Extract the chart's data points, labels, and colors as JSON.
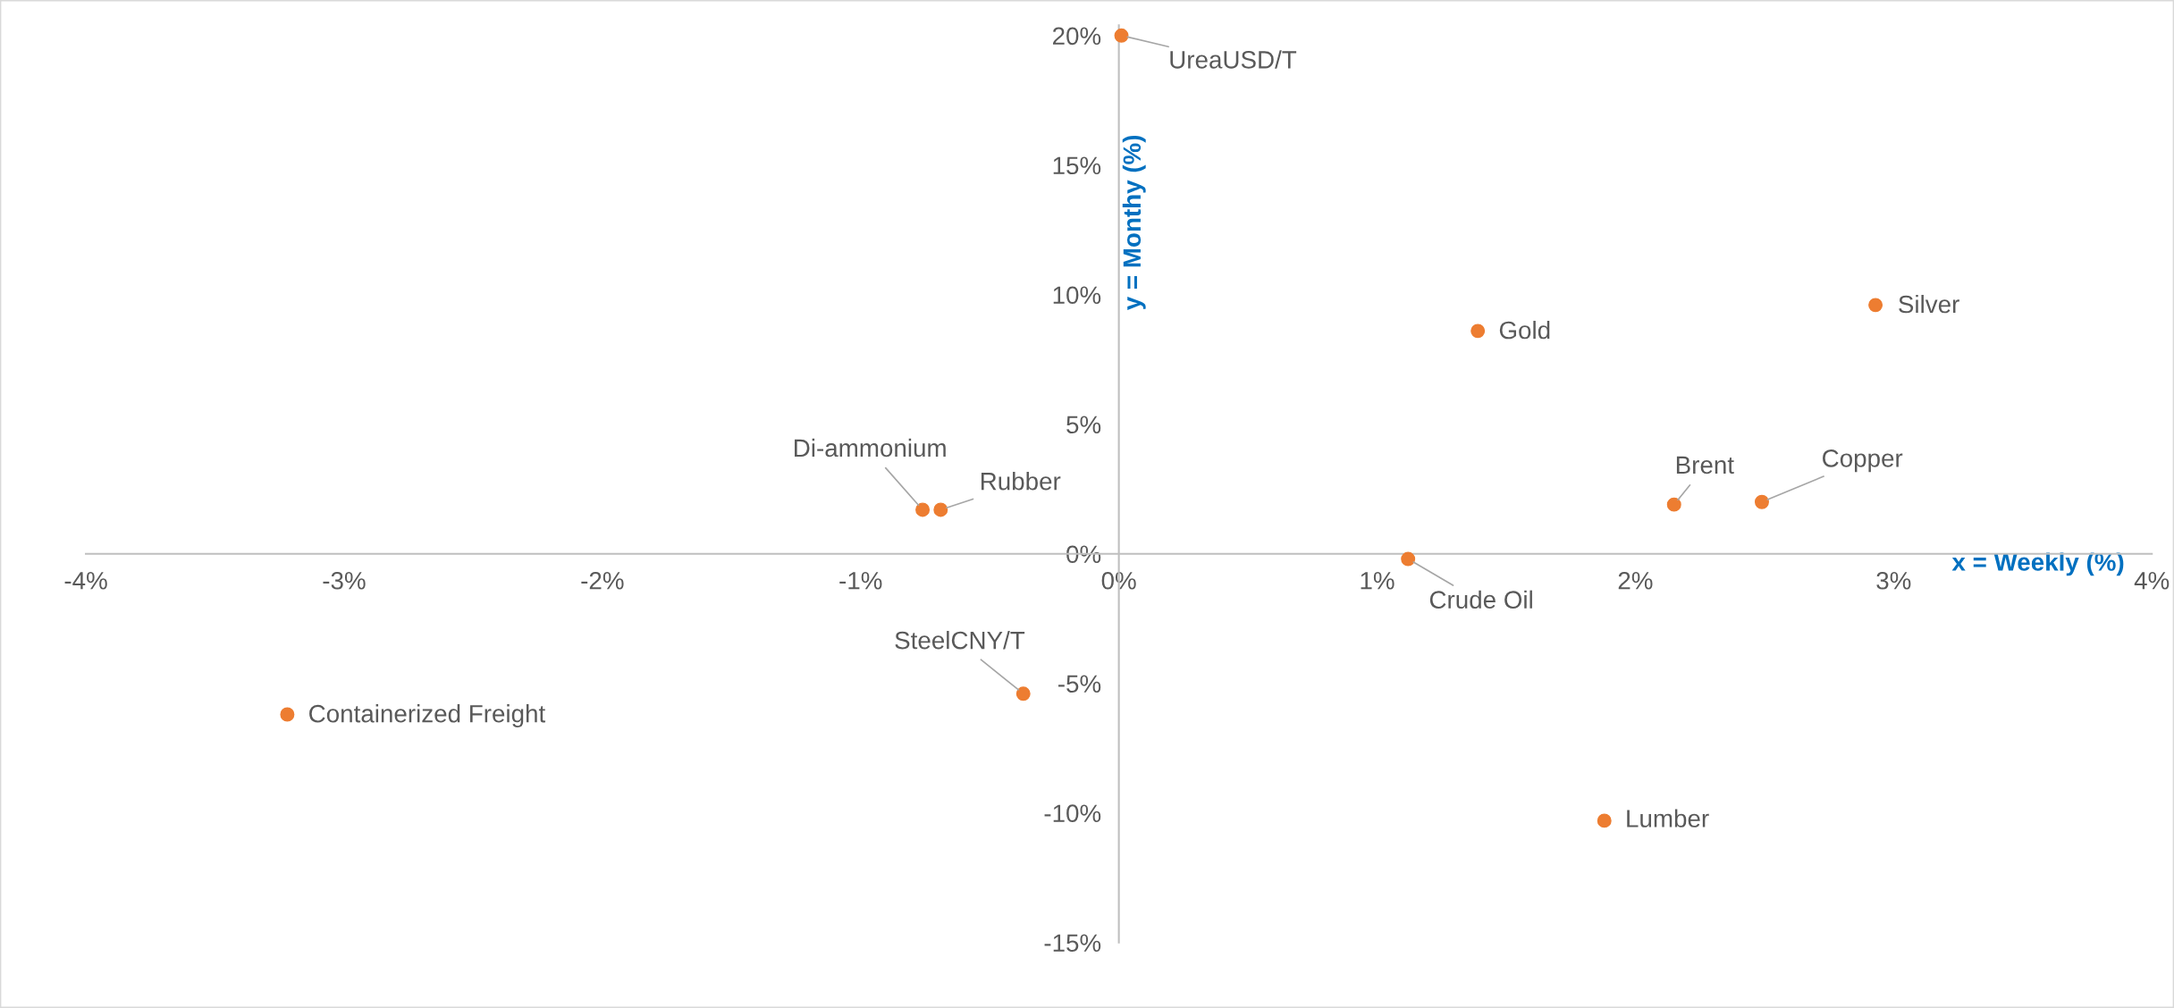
{
  "chart_data": {
    "type": "scatter",
    "xlabel": "x = Weekly (%)",
    "ylabel": "y = Monthy (%)",
    "x": [
      0.01,
      1.39,
      2.93,
      2.15,
      2.49,
      1.12,
      -0.76,
      -0.69,
      -0.37,
      -3.22,
      1.88
    ],
    "series": [
      {
        "color": "#ed7d31",
        "values": [
          20.0,
          8.6,
          9.6,
          1.9,
          2.0,
          -0.2,
          1.7,
          1.7,
          -5.4,
          -6.2,
          -10.3
        ]
      }
    ],
    "annotations": [
      {
        "text": "UreaUSD/T",
        "x": 0.01,
        "y": 20.0
      },
      {
        "text": "Gold",
        "x": 1.39,
        "y": 8.6
      },
      {
        "text": "Silver",
        "x": 2.93,
        "y": 9.6
      },
      {
        "text": "Brent",
        "x": 2.15,
        "y": 1.9
      },
      {
        "text": "Copper",
        "x": 2.49,
        "y": 2.0
      },
      {
        "text": "Crude Oil",
        "x": 1.12,
        "y": -0.2
      },
      {
        "text": "Di-ammonium",
        "x": -0.76,
        "y": 1.7
      },
      {
        "text": "Rubber",
        "x": -0.69,
        "y": 1.7
      },
      {
        "text": "SteelCNY/T",
        "x": -0.37,
        "y": -5.4
      },
      {
        "text": "Containerized Freight",
        "x": -3.22,
        "y": -6.2
      },
      {
        "text": "Lumber",
        "x": 1.88,
        "y": -10.3
      }
    ],
    "xlim": [
      -4,
      4
    ],
    "ylim": [
      -15,
      20.4
    ],
    "xticks": [
      {
        "value": -4,
        "label": "-4%"
      },
      {
        "value": -3,
        "label": "-3%"
      },
      {
        "value": -2,
        "label": "-2%"
      },
      {
        "value": -1,
        "label": "-1%"
      },
      {
        "value": 0,
        "label": "0%"
      },
      {
        "value": 1,
        "label": "1%"
      },
      {
        "value": 2,
        "label": "2%"
      },
      {
        "value": 3,
        "label": "3%"
      },
      {
        "value": 4,
        "label": "4%"
      }
    ],
    "yticks": [
      {
        "value": -15,
        "label": "-15%"
      },
      {
        "value": -10,
        "label": "-10%"
      },
      {
        "value": -5,
        "label": "-5%"
      },
      {
        "value": 0,
        "label": "0%"
      },
      {
        "value": 5,
        "label": "5%"
      },
      {
        "value": 10,
        "label": "10%"
      },
      {
        "value": 15,
        "label": "15%"
      },
      {
        "value": 20,
        "label": "20%"
      }
    ],
    "marker": "circle",
    "grid": false,
    "legend": false
  }
}
